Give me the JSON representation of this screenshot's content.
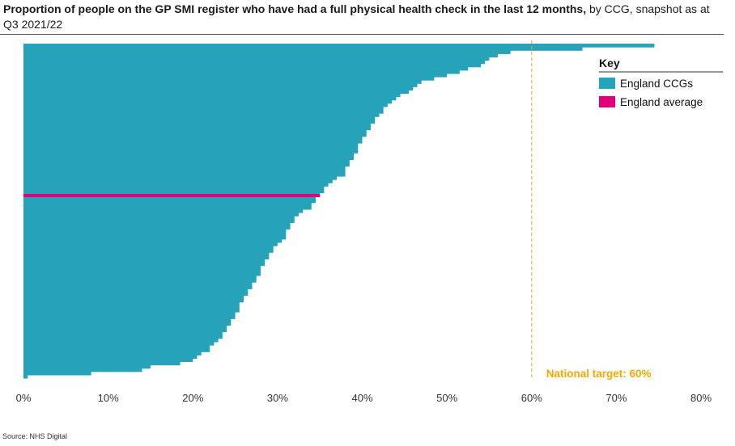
{
  "title": {
    "bold": "Proportion of people on the GP SMI register who have had a full physical health check in the last 12 months,",
    "normal": " by CCG, snapshot as at Q3 2021/22"
  },
  "source": "Source: NHS Digital",
  "colors": {
    "ccg": "#26a3b8",
    "average": "#e2007a",
    "target": "#f2a900"
  },
  "chart_data": {
    "type": "bar",
    "orientation": "horizontal",
    "sorted": "descending",
    "xlim": [
      0,
      80
    ],
    "x_ticks": [
      "0%",
      "10%",
      "20%",
      "30%",
      "40%",
      "50%",
      "60%",
      "70%",
      "80%"
    ],
    "series": [
      {
        "name": "England CCGs",
        "values": [
          74.5,
          66,
          57.5,
          56,
          55,
          54.5,
          54,
          52.5,
          51.5,
          50,
          48.5,
          47,
          46.5,
          46,
          45.5,
          44.5,
          44,
          43.5,
          43,
          42.5,
          42.5,
          42,
          41.5,
          41.5,
          41,
          41,
          40.5,
          40.5,
          40,
          40,
          39.5,
          39.5,
          39.5,
          39,
          39,
          38.5,
          38.5,
          38,
          38,
          38,
          37,
          36.5,
          36,
          35.5,
          35.5,
          35,
          34.5,
          34.5,
          34,
          34,
          33,
          32.5,
          32,
          32,
          31.5,
          31.5,
          31,
          31,
          31,
          30.5,
          30,
          29.5,
          29.5,
          29,
          29,
          28.5,
          28.5,
          28,
          28,
          28,
          27.5,
          27.5,
          27,
          27,
          26.5,
          26.5,
          26,
          26,
          25.5,
          25.5,
          25.5,
          25,
          25,
          24.5,
          24.5,
          24,
          24,
          23.5,
          23.5,
          23,
          22.5,
          22,
          22,
          21,
          20.5,
          20,
          18.5,
          15,
          14,
          8,
          0.5
        ]
      }
    ],
    "england_average": 35,
    "national_target": 60,
    "annotation": "National target: 60%",
    "legend": {
      "title": "Key",
      "entries": [
        "England CCGs",
        "England average"
      ],
      "position": "top-right"
    }
  }
}
